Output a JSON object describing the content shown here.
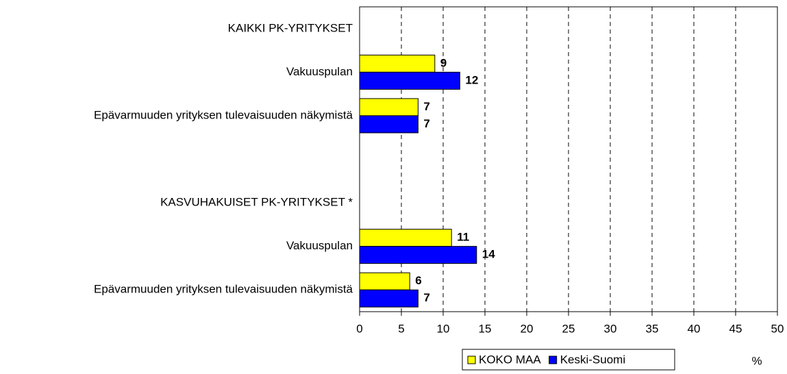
{
  "chart_data": {
    "type": "hbar",
    "categories": [
      "KAIKKI PK-YRITYKSET",
      "Vakuuspulan",
      "Epävarmuuden yrityksen tulevaisuuden näkymistä",
      null,
      "KASVUHAKUISET PK-YRITYKSET *",
      "Vakuuspulan",
      "Epävarmuuden yrityksen tulevaisuuden näkymistä"
    ],
    "series": [
      {
        "name": "KOKO MAA",
        "color": "#ffff00",
        "values": [
          null,
          9,
          7,
          null,
          null,
          11,
          6
        ]
      },
      {
        "name": "Keski-Suomi",
        "color": "#0000ff",
        "values": [
          null,
          12,
          7,
          null,
          null,
          14,
          7
        ]
      }
    ],
    "xlabel": "%",
    "xlim": [
      0,
      50
    ],
    "xticks": [
      0,
      5,
      10,
      15,
      20,
      25,
      30,
      35,
      40,
      45,
      50
    ],
    "grid": true
  }
}
